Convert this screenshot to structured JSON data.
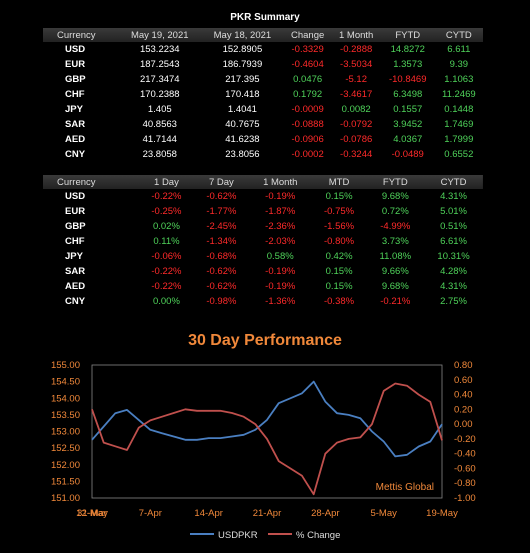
{
  "summary_title": "PKR Summary",
  "table1": {
    "headers": [
      "Currency",
      "May 19, 2021",
      "May 18, 2021",
      "Change",
      "1 Month",
      "FYTD",
      "CYTD"
    ],
    "rows": [
      [
        "USD",
        "153.2234",
        "152.8905",
        "-0.3329",
        "-0.2888",
        "14.8272",
        "6.611"
      ],
      [
        "EUR",
        "187.2543",
        "186.7939",
        "-0.4604",
        "-3.5034",
        "1.3573",
        "9.39"
      ],
      [
        "GBP",
        "217.3474",
        "217.395",
        "0.0476",
        "-5.12",
        "-10.8469",
        "1.1063"
      ],
      [
        "CHF",
        "170.2388",
        "170.418",
        "0.1792",
        "-3.4617",
        "6.3498",
        "11.2469"
      ],
      [
        "JPY",
        "1.405",
        "1.4041",
        "-0.0009",
        "0.0082",
        "0.1557",
        "0.1448"
      ],
      [
        "SAR",
        "40.8563",
        "40.7675",
        "-0.0888",
        "-0.0792",
        "3.9452",
        "1.7469"
      ],
      [
        "AED",
        "41.7144",
        "41.6238",
        "-0.0906",
        "-0.0786",
        "4.0367",
        "1.7999"
      ],
      [
        "CNY",
        "23.8058",
        "23.8056",
        "-0.0002",
        "-0.3244",
        "-0.0489",
        "0.6552"
      ]
    ]
  },
  "table2": {
    "headers": [
      "Currency",
      "1 Day",
      "7 Day",
      "1 Month",
      "MTD",
      "FYTD",
      "CYTD"
    ],
    "rows": [
      [
        "USD",
        "-0.22%",
        "-0.62%",
        "-0.19%",
        "0.15%",
        "9.68%",
        "4.31%"
      ],
      [
        "EUR",
        "-0.25%",
        "-1.77%",
        "-1.87%",
        "-0.75%",
        "0.72%",
        "5.01%"
      ],
      [
        "GBP",
        "0.02%",
        "-2.45%",
        "-2.36%",
        "-1.56%",
        "-4.99%",
        "0.51%"
      ],
      [
        "CHF",
        "0.11%",
        "-1.34%",
        "-2.03%",
        "-0.80%",
        "3.73%",
        "6.61%"
      ],
      [
        "JPY",
        "-0.06%",
        "-0.68%",
        "0.58%",
        "0.42%",
        "11.08%",
        "10.31%"
      ],
      [
        "SAR",
        "-0.22%",
        "-0.62%",
        "-0.19%",
        "0.15%",
        "9.66%",
        "4.28%"
      ],
      [
        "AED",
        "-0.22%",
        "-0.62%",
        "-0.19%",
        "0.15%",
        "9.68%",
        "4.31%"
      ],
      [
        "CNY",
        "0.00%",
        "-0.98%",
        "-1.36%",
        "-0.38%",
        "-0.21%",
        "2.75%"
      ]
    ]
  },
  "colors": {
    "accent": "#f0883a",
    "usd_line": "#4a7fc1",
    "change_line": "#c0504d",
    "positive": "#4fd25a",
    "negative": "#ff2a2a"
  },
  "watermark": "Mettis Global",
  "chart_data": {
    "type": "line",
    "title": "30 Day Performance",
    "x_ticks": [
      "31-Mar",
      "7-Apr",
      "14-Apr",
      "21-Apr",
      "28-Apr",
      "5-May",
      "12-May",
      "19-May"
    ],
    "x": [
      "31-Mar",
      "1-Apr",
      "2-Apr",
      "5-Apr",
      "6-Apr",
      "7-Apr",
      "8-Apr",
      "9-Apr",
      "12-Apr",
      "13-Apr",
      "14-Apr",
      "15-Apr",
      "16-Apr",
      "19-Apr",
      "20-Apr",
      "21-Apr",
      "22-Apr",
      "23-Apr",
      "26-Apr",
      "27-Apr",
      "28-Apr",
      "29-Apr",
      "30-Apr",
      "3-May",
      "4-May",
      "5-May",
      "6-May",
      "7-May",
      "17-May",
      "18-May",
      "19-May"
    ],
    "series": [
      {
        "name": "USDPKR",
        "axis": "left",
        "values": [
          152.75,
          153.15,
          153.55,
          153.65,
          153.35,
          153.05,
          152.95,
          152.85,
          152.75,
          152.75,
          152.8,
          152.8,
          152.85,
          152.9,
          153.05,
          153.35,
          153.85,
          154.0,
          154.15,
          154.5,
          153.9,
          153.55,
          153.5,
          153.4,
          153.0,
          152.7,
          152.25,
          152.3,
          152.55,
          152.7,
          153.22
        ]
      },
      {
        "name": "% Change",
        "axis": "right",
        "values": [
          0.2,
          -0.25,
          -0.3,
          -0.35,
          -0.05,
          0.05,
          0.1,
          0.15,
          0.2,
          0.18,
          0.18,
          0.18,
          0.15,
          0.1,
          0.0,
          -0.2,
          -0.5,
          -0.6,
          -0.7,
          -0.95,
          -0.4,
          -0.25,
          -0.2,
          -0.18,
          0.0,
          0.45,
          0.55,
          0.52,
          0.4,
          0.3,
          -0.22
        ]
      }
    ],
    "y_left": {
      "min": 151.0,
      "max": 155.0,
      "step": 0.5,
      "ticks": [
        "155.00",
        "154.50",
        "154.00",
        "153.50",
        "153.00",
        "152.50",
        "152.00",
        "151.50",
        "151.00"
      ]
    },
    "y_right": {
      "min": -1.0,
      "max": 0.8,
      "step": 0.2,
      "ticks": [
        "0.80",
        "0.60",
        "0.40",
        "0.20",
        "0.00",
        "-0.20",
        "-0.40",
        "-0.60",
        "-0.80",
        "-1.00"
      ]
    },
    "grid": false,
    "legend": "bottom"
  }
}
